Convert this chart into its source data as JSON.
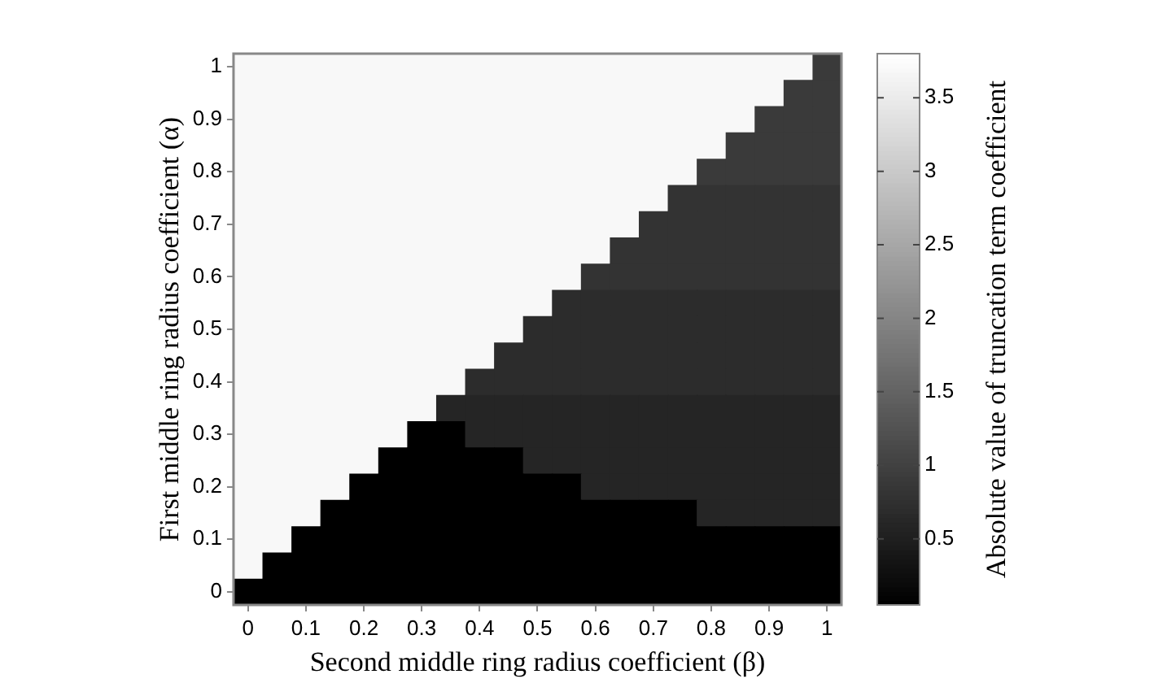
{
  "chart_data": {
    "type": "heatmap",
    "xlabel": "Second middle ring radius coefficient (β)",
    "ylabel": "First middle ring radius coefficient (α)",
    "clabel": "Absolute value of truncation term coefficient",
    "categories": [
      "0",
      null,
      "0.1",
      null,
      "0.2",
      null,
      "0.3",
      null,
      "0.4",
      null,
      "0.5",
      null,
      "0.6",
      null,
      "0.7",
      null,
      "0.8",
      null,
      "0.9",
      null,
      "1"
    ],
    "y_categories": [
      "1",
      null,
      "0.9",
      null,
      "0.8",
      null,
      "0.7",
      null,
      "0.6",
      null,
      "0.5",
      null,
      "0.4",
      null,
      "0.3",
      null,
      "0.2",
      null,
      "0.1",
      null,
      "0"
    ],
    "cells": [
      [
        3.7,
        3.7,
        3.7,
        3.7,
        3.7,
        3.7,
        3.7,
        3.7,
        3.7,
        3.7,
        3.7,
        3.7,
        3.7,
        3.7,
        3.7,
        3.7,
        3.7,
        3.7,
        3.7,
        3.7,
        0.9
      ],
      [
        3.7,
        3.7,
        3.7,
        3.7,
        3.7,
        3.7,
        3.7,
        3.7,
        3.7,
        3.7,
        3.7,
        3.7,
        3.7,
        3.7,
        3.7,
        3.7,
        3.7,
        3.7,
        3.7,
        0.9,
        0.9
      ],
      [
        3.7,
        3.7,
        3.7,
        3.7,
        3.7,
        3.7,
        3.7,
        3.7,
        3.7,
        3.7,
        3.7,
        3.7,
        3.7,
        3.7,
        3.7,
        3.7,
        3.7,
        3.7,
        0.9,
        0.9,
        0.9
      ],
      [
        3.7,
        3.7,
        3.7,
        3.7,
        3.7,
        3.7,
        3.7,
        3.7,
        3.7,
        3.7,
        3.7,
        3.7,
        3.7,
        3.7,
        3.7,
        3.7,
        3.7,
        0.9,
        0.9,
        0.9,
        0.9
      ],
      [
        3.7,
        3.7,
        3.7,
        3.7,
        3.7,
        3.7,
        3.7,
        3.7,
        3.7,
        3.7,
        3.7,
        3.7,
        3.7,
        3.7,
        3.7,
        3.7,
        0.9,
        0.9,
        0.9,
        0.9,
        0.9
      ],
      [
        3.7,
        3.7,
        3.7,
        3.7,
        3.7,
        3.7,
        3.7,
        3.7,
        3.7,
        3.7,
        3.7,
        3.7,
        3.7,
        3.7,
        3.7,
        0.8,
        0.8,
        0.8,
        0.8,
        0.8,
        0.8
      ],
      [
        3.7,
        3.7,
        3.7,
        3.7,
        3.7,
        3.7,
        3.7,
        3.7,
        3.7,
        3.7,
        3.7,
        3.7,
        3.7,
        3.7,
        0.8,
        0.8,
        0.8,
        0.8,
        0.8,
        0.8,
        0.8
      ],
      [
        3.7,
        3.7,
        3.7,
        3.7,
        3.7,
        3.7,
        3.7,
        3.7,
        3.7,
        3.7,
        3.7,
        3.7,
        3.7,
        0.8,
        0.8,
        0.8,
        0.8,
        0.8,
        0.8,
        0.8,
        0.8
      ],
      [
        3.7,
        3.7,
        3.7,
        3.7,
        3.7,
        3.7,
        3.7,
        3.7,
        3.7,
        3.7,
        3.7,
        3.7,
        0.8,
        0.8,
        0.8,
        0.8,
        0.8,
        0.8,
        0.8,
        0.8,
        0.8
      ],
      [
        3.7,
        3.7,
        3.7,
        3.7,
        3.7,
        3.7,
        3.7,
        3.7,
        3.7,
        3.7,
        3.7,
        0.7,
        0.7,
        0.7,
        0.7,
        0.7,
        0.7,
        0.7,
        0.7,
        0.7,
        0.7
      ],
      [
        3.7,
        3.7,
        3.7,
        3.7,
        3.7,
        3.7,
        3.7,
        3.7,
        3.7,
        3.7,
        0.7,
        0.7,
        0.7,
        0.7,
        0.7,
        0.7,
        0.7,
        0.7,
        0.7,
        0.7,
        0.7
      ],
      [
        3.7,
        3.7,
        3.7,
        3.7,
        3.7,
        3.7,
        3.7,
        3.7,
        3.7,
        0.7,
        0.7,
        0.7,
        0.7,
        0.7,
        0.7,
        0.7,
        0.7,
        0.7,
        0.7,
        0.7,
        0.7
      ],
      [
        3.7,
        3.7,
        3.7,
        3.7,
        3.7,
        3.7,
        3.7,
        3.7,
        0.7,
        0.7,
        0.7,
        0.7,
        0.7,
        0.7,
        0.7,
        0.7,
        0.7,
        0.7,
        0.7,
        0.7,
        0.7
      ],
      [
        3.7,
        3.7,
        3.7,
        3.7,
        3.7,
        3.7,
        3.7,
        0.6,
        0.6,
        0.6,
        0.6,
        0.6,
        0.6,
        0.6,
        0.6,
        0.6,
        0.6,
        0.6,
        0.6,
        0.6,
        0.6
      ],
      [
        3.7,
        3.7,
        3.7,
        3.7,
        3.7,
        3.7,
        0.05,
        0.05,
        0.6,
        0.6,
        0.6,
        0.6,
        0.6,
        0.6,
        0.6,
        0.6,
        0.6,
        0.6,
        0.6,
        0.6,
        0.6
      ],
      [
        3.7,
        3.7,
        3.7,
        3.7,
        3.7,
        0.05,
        0.05,
        0.05,
        0.05,
        0.05,
        0.6,
        0.6,
        0.6,
        0.6,
        0.6,
        0.6,
        0.6,
        0.6,
        0.6,
        0.6,
        0.6
      ],
      [
        3.7,
        3.7,
        3.7,
        3.7,
        0.05,
        0.05,
        0.05,
        0.05,
        0.05,
        0.05,
        0.05,
        0.05,
        0.6,
        0.6,
        0.6,
        0.6,
        0.6,
        0.6,
        0.6,
        0.6,
        0.6
      ],
      [
        3.7,
        3.7,
        3.7,
        0.05,
        0.05,
        0.05,
        0.05,
        0.05,
        0.05,
        0.05,
        0.05,
        0.05,
        0.05,
        0.05,
        0.05,
        0.05,
        0.6,
        0.6,
        0.6,
        0.6,
        0.6
      ],
      [
        3.7,
        3.7,
        0.05,
        0.05,
        0.05,
        0.05,
        0.05,
        0.05,
        0.05,
        0.05,
        0.05,
        0.05,
        0.05,
        0.05,
        0.05,
        0.05,
        0.05,
        0.05,
        0.05,
        0.05,
        0.05
      ],
      [
        3.7,
        0.05,
        0.05,
        0.05,
        0.05,
        0.05,
        0.05,
        0.05,
        0.05,
        0.05,
        0.05,
        0.05,
        0.05,
        0.05,
        0.05,
        0.05,
        0.05,
        0.05,
        0.05,
        0.05,
        0.05
      ],
      [
        0.05,
        0.05,
        0.05,
        0.05,
        0.05,
        0.05,
        0.05,
        0.05,
        0.05,
        0.05,
        0.05,
        0.05,
        0.05,
        0.05,
        0.05,
        0.05,
        0.05,
        0.05,
        0.05,
        0.05,
        0.05
      ]
    ],
    "clim": [
      0.05,
      3.8
    ],
    "cticks": [
      0.5,
      1,
      1.5,
      2,
      2.5,
      3,
      3.5
    ]
  }
}
